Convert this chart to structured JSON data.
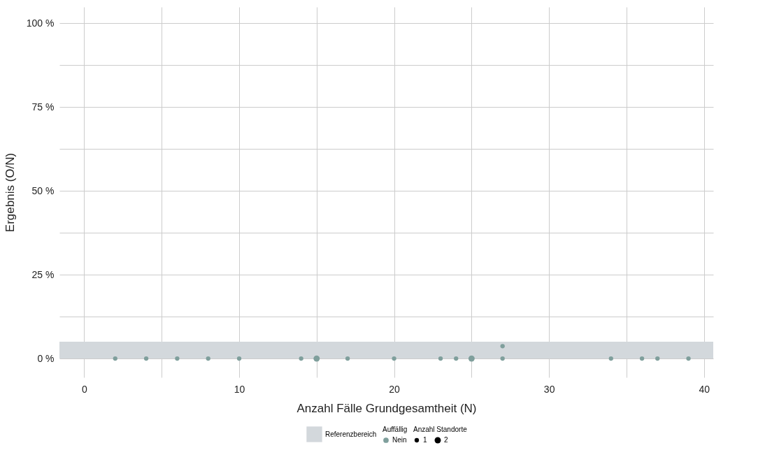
{
  "chart_data": {
    "type": "bubble",
    "xlabel": "Anzahl Fälle Grundgesamtheit (N)",
    "ylabel": "Ergebnis (O/N)",
    "legend_title": "Auffällig",
    "annotations": [
      "Anzahl Standorte"
    ],
    "size_legend": [
      1,
      2
    ],
    "x": [
      2,
      4,
      6,
      8,
      10,
      14,
      15,
      17,
      20,
      23,
      24,
      25,
      27,
      27,
      34,
      36,
      37,
      39
    ],
    "series": [
      {
        "name": "Nein",
        "color": "#7f9f9c",
        "values": [
          0,
          0,
          0,
          0,
          0,
          0,
          0,
          0,
          0,
          0,
          0,
          0,
          3.7,
          0,
          0,
          0,
          0,
          0
        ],
        "sizes": [
          1,
          1,
          1,
          1,
          1,
          1,
          2,
          1,
          1,
          1,
          1,
          2,
          1,
          1,
          1,
          1,
          1,
          1
        ]
      }
    ],
    "xlim": [
      -1.6,
      40.6
    ],
    "ylim": [
      -5.6,
      104.8
    ],
    "xticks": [
      0,
      {
        "value": 5,
        "label": null
      },
      10,
      {
        "value": 15,
        "label": null
      },
      20,
      {
        "value": 25,
        "label": null
      },
      30,
      {
        "value": 35,
        "label": null
      },
      40
    ],
    "yticks": [
      {
        "value": 0,
        "label": "0 %"
      },
      {
        "value": 12.5,
        "label": null
      },
      {
        "value": 25,
        "label": "25 %"
      },
      {
        "value": 37.5,
        "label": null
      },
      {
        "value": 50,
        "label": "50 %"
      },
      {
        "value": 62.5,
        "label": null
      },
      {
        "value": 75,
        "label": "75 %"
      },
      {
        "value": 87.5,
        "label": null
      },
      {
        "value": 100,
        "label": "100 %"
      }
    ],
    "bands": [
      {
        "axis": "y",
        "from": 0,
        "to": 5,
        "label": "Referenzbereich",
        "color": "#d3d8dc"
      }
    ],
    "grid": true,
    "legend": "bottom",
    "marker": "circle"
  }
}
